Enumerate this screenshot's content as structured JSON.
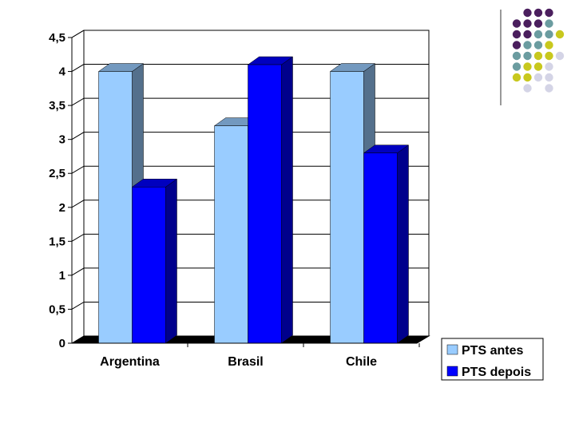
{
  "chart_data": {
    "type": "bar",
    "categories": [
      "Argentina",
      "Brasil",
      "Chile"
    ],
    "series": [
      {
        "name": "PTS antes",
        "values": [
          4,
          3.2,
          4
        ],
        "color": "#99ccff"
      },
      {
        "name": "PTS depois",
        "values": [
          2.3,
          4.1,
          2.8
        ],
        "color": "#0000ff"
      }
    ],
    "ylim": [
      0,
      4.5
    ],
    "yticks": [
      "0",
      "0,5",
      "1",
      "1,5",
      "2",
      "2,5",
      "3",
      "3,5",
      "4",
      "4,5"
    ],
    "grid": true,
    "legend_position": "bottom-right",
    "style": "3d-column"
  },
  "decoration": {
    "dot_colors": {
      "purple": "#4b1f5e",
      "teal": "#6b9ca0",
      "olive": "#c8c81e",
      "lavender": "#d4d4e6"
    }
  }
}
